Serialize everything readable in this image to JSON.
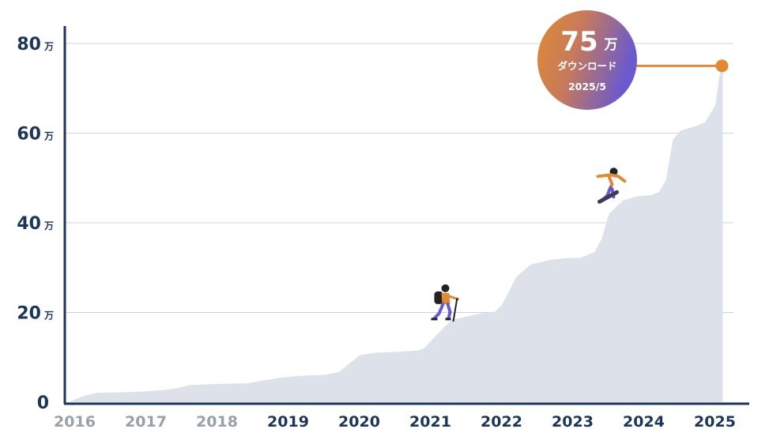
{
  "chart_data": {
    "type": "area",
    "title": "",
    "xlabel": "",
    "ylabel": "",
    "y_unit": "万",
    "ylim": [
      0,
      80
    ],
    "yticks": [
      "0",
      "20",
      "40",
      "60",
      "80"
    ],
    "xlim": [
      2015.95,
      2025.35
    ],
    "x_tick_labels": [
      {
        "label": "2016",
        "x": 2016.2,
        "muted": true
      },
      {
        "label": "2017",
        "x": 2017.2,
        "muted": true
      },
      {
        "label": "2018",
        "x": 2018.2,
        "muted": true
      },
      {
        "label": "2019",
        "x": 2019.2,
        "muted": false
      },
      {
        "label": "2020",
        "x": 2020.2,
        "muted": false
      },
      {
        "label": "2021",
        "x": 2021.2,
        "muted": false
      },
      {
        "label": "2022",
        "x": 2022.2,
        "muted": false
      },
      {
        "label": "2023",
        "x": 2023.2,
        "muted": false
      },
      {
        "label": "2024",
        "x": 2024.2,
        "muted": false
      },
      {
        "label": "2025",
        "x": 2025.2,
        "muted": false
      }
    ],
    "grid": true,
    "series": [
      {
        "points": [
          [
            2016.0,
            0
          ],
          [
            2016.2,
            1.3
          ],
          [
            2016.4,
            2.1
          ],
          [
            2016.8,
            2.2
          ],
          [
            2017.2,
            2.5
          ],
          [
            2017.5,
            3.0
          ],
          [
            2017.7,
            3.8
          ],
          [
            2018.0,
            4.0
          ],
          [
            2018.5,
            4.2
          ],
          [
            2018.8,
            5.0
          ],
          [
            2019.0,
            5.5
          ],
          [
            2019.3,
            5.9
          ],
          [
            2019.6,
            6.1
          ],
          [
            2019.8,
            6.7
          ],
          [
            2020.1,
            10.5
          ],
          [
            2020.3,
            11.0
          ],
          [
            2020.6,
            11.2
          ],
          [
            2020.9,
            11.5
          ],
          [
            2021.0,
            12.0
          ],
          [
            2021.3,
            17.0
          ],
          [
            2021.4,
            18.4
          ],
          [
            2021.8,
            19.8
          ],
          [
            2022.0,
            20.2
          ],
          [
            2022.1,
            21.8
          ],
          [
            2022.3,
            28.0
          ],
          [
            2022.5,
            30.7
          ],
          [
            2022.8,
            31.8
          ],
          [
            2023.0,
            32.1
          ],
          [
            2023.2,
            32.2
          ],
          [
            2023.4,
            33.5
          ],
          [
            2023.5,
            36.5
          ],
          [
            2023.6,
            42.0
          ],
          [
            2023.8,
            45.0
          ],
          [
            2024.0,
            45.9
          ],
          [
            2024.2,
            46.2
          ],
          [
            2024.3,
            46.8
          ],
          [
            2024.4,
            49.5
          ],
          [
            2024.5,
            58.5
          ],
          [
            2024.6,
            60.5
          ],
          [
            2024.8,
            61.5
          ],
          [
            2024.95,
            62.4
          ],
          [
            2025.05,
            65.0
          ],
          [
            2025.1,
            66.5
          ],
          [
            2025.15,
            72.5
          ],
          [
            2025.2,
            75.0
          ]
        ],
        "color": "#dde2ea"
      }
    ],
    "highlight": {
      "x": 2025.2,
      "y": 75,
      "value": "75",
      "unit": "万",
      "label": "ダウンロード",
      "date": "2025/5",
      "marker_color": "#e08a35",
      "bubble_gradient": [
        "#e08a35",
        "#6a5acd"
      ]
    },
    "illustrations": [
      {
        "name": "hiker",
        "x": 2021.3,
        "y": 18
      },
      {
        "name": "snowboarder",
        "x": 2023.6,
        "y": 44
      }
    ],
    "colors": {
      "axis": "#1d3557",
      "grid": "#d0d4da",
      "muted_tick": "#9aa0a6",
      "tick": "#1d3557"
    }
  }
}
